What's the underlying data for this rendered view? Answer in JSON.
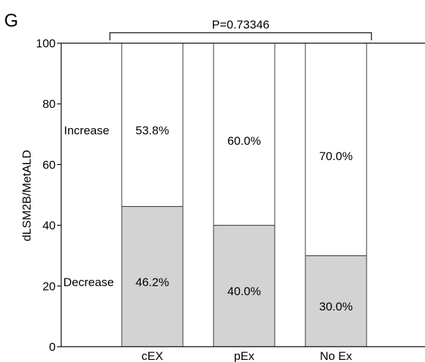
{
  "chart_data": {
    "type": "bar",
    "panel_label": "G",
    "title": "",
    "xlabel": "",
    "ylabel": "dLSM2B/MetALD",
    "ylim": [
      0,
      100
    ],
    "yticks": [
      0,
      20,
      40,
      60,
      80,
      100
    ],
    "categories": [
      "cEX",
      "pEx",
      "No Ex"
    ],
    "series": [
      {
        "name": "Decrease",
        "values": [
          46.2,
          40.0,
          30.0
        ],
        "labels": [
          "46.2%",
          "40.0%",
          "30.0%"
        ],
        "color": "#d3d3d3"
      },
      {
        "name": "Increase",
        "values": [
          53.8,
          60.0,
          70.0
        ],
        "labels": [
          "53.8%",
          "60.0%",
          "70.0%"
        ],
        "color": "#ffffff"
      }
    ],
    "stacked": true,
    "annotation": "P=0.73346",
    "grid": false
  }
}
